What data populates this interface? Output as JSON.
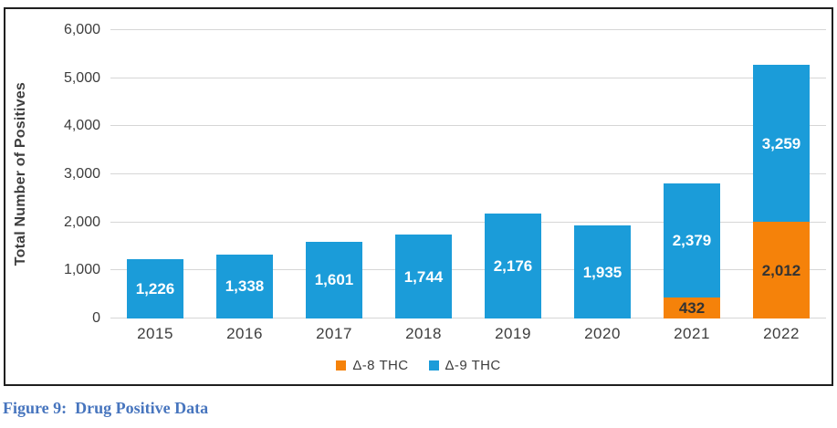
{
  "caption": {
    "text": "Figure 9:  Drug Positive Data"
  },
  "chart_data": {
    "type": "bar",
    "stacked": true,
    "title": "",
    "xlabel": "",
    "ylabel": "Total Number of Positives",
    "ylim": [
      0,
      6000
    ],
    "ytick_step": 1000,
    "grid": "horizontal",
    "legend_position": "bottom",
    "categories": [
      "2015",
      "2016",
      "2017",
      "2018",
      "2019",
      "2020",
      "2021",
      "2022"
    ],
    "series": [
      {
        "name": "Δ-8 THC",
        "color": "#f5820a",
        "label_color": "#333333",
        "values": [
          0,
          0,
          0,
          0,
          0,
          0,
          432,
          2012
        ],
        "labels": [
          "",
          "",
          "",
          "",
          "",
          "",
          "432",
          "2,012"
        ]
      },
      {
        "name": "Δ-9 THC",
        "color": "#1b9cd9",
        "label_color": "#ffffff",
        "values": [
          1226,
          1338,
          1601,
          1744,
          2176,
          1935,
          2379,
          3259
        ],
        "labels": [
          "1,226",
          "1,338",
          "1,601",
          "1,744",
          "2,176",
          "1,935",
          "2,379",
          "3,259"
        ]
      }
    ],
    "yticks": [
      {
        "value": 0,
        "label": "0"
      },
      {
        "value": 1000,
        "label": "1,000"
      },
      {
        "value": 2000,
        "label": "2,000"
      },
      {
        "value": 3000,
        "label": "3,000"
      },
      {
        "value": 4000,
        "label": "4,000"
      },
      {
        "value": 5000,
        "label": "5,000"
      },
      {
        "value": 6000,
        "label": "6,000"
      }
    ]
  }
}
